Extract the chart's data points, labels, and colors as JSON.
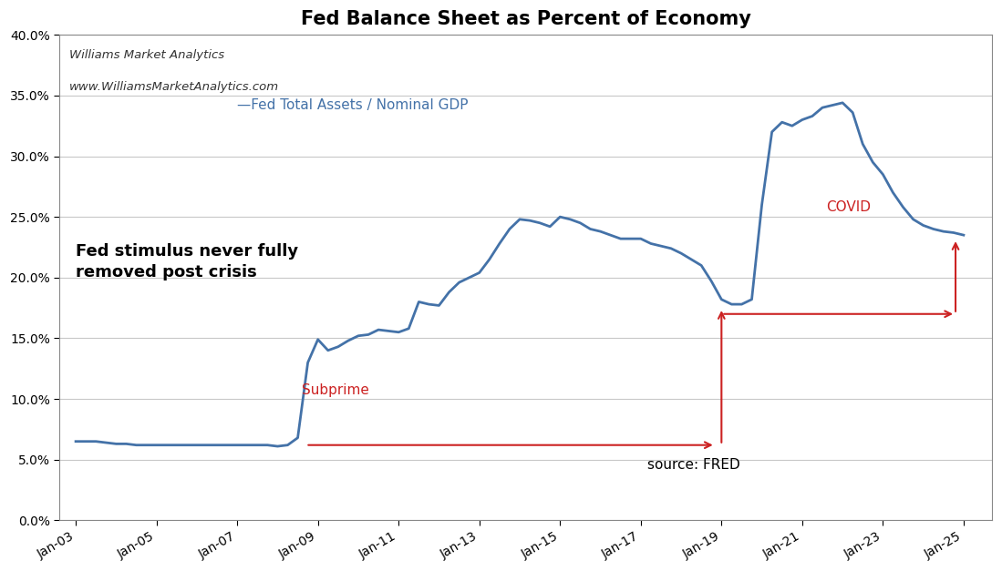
{
  "title": "Fed Balance Sheet as Percent of Economy",
  "subtitle1": "Williams Market Analytics",
  "subtitle2": "www.WilliamsMarketAnalytics.com",
  "source_text": "source: FRED",
  "legend_label": "—Fed Total Assets / Nominal GDP",
  "annotation_bold": "Fed stimulus never fully\nremoved post crisis",
  "annotation_subprime": "Subprime",
  "annotation_covid": "COVID",
  "line_color": "#4472A8",
  "arrow_color": "#CC2222",
  "background_color": "#FFFFFF",
  "grid_color": "#C8C8C8",
  "x_ticks": [
    "Jan-03",
    "Jan-05",
    "Jan-07",
    "Jan-09",
    "Jan-11",
    "Jan-13",
    "Jan-15",
    "Jan-17",
    "Jan-19",
    "Jan-21",
    "Jan-23",
    "Jan-25"
  ],
  "x_tick_years": [
    2003,
    2005,
    2007,
    2009,
    2011,
    2013,
    2015,
    2017,
    2019,
    2021,
    2023,
    2025
  ],
  "xlim": [
    2002.6,
    2025.7
  ],
  "ylim": [
    0.0,
    0.4
  ],
  "yticks": [
    0.0,
    0.05,
    0.1,
    0.15,
    0.2,
    0.25,
    0.3,
    0.35,
    0.4
  ],
  "data": {
    "years": [
      2003.0,
      2003.25,
      2003.5,
      2003.75,
      2004.0,
      2004.25,
      2004.5,
      2004.75,
      2005.0,
      2005.25,
      2005.5,
      2005.75,
      2006.0,
      2006.25,
      2006.5,
      2006.75,
      2007.0,
      2007.25,
      2007.5,
      2007.75,
      2008.0,
      2008.25,
      2008.5,
      2008.75,
      2009.0,
      2009.25,
      2009.5,
      2009.75,
      2010.0,
      2010.25,
      2010.5,
      2010.75,
      2011.0,
      2011.25,
      2011.5,
      2011.75,
      2012.0,
      2012.25,
      2012.5,
      2012.75,
      2013.0,
      2013.25,
      2013.5,
      2013.75,
      2014.0,
      2014.25,
      2014.5,
      2014.75,
      2015.0,
      2015.25,
      2015.5,
      2015.75,
      2016.0,
      2016.25,
      2016.5,
      2016.75,
      2017.0,
      2017.25,
      2017.5,
      2017.75,
      2018.0,
      2018.25,
      2018.5,
      2018.75,
      2019.0,
      2019.25,
      2019.5,
      2019.75,
      2020.0,
      2020.25,
      2020.5,
      2020.75,
      2021.0,
      2021.25,
      2021.5,
      2021.75,
      2022.0,
      2022.25,
      2022.5,
      2022.75,
      2023.0,
      2023.25,
      2023.5,
      2023.75,
      2024.0,
      2024.25,
      2024.5,
      2024.75,
      2025.0
    ],
    "values": [
      0.065,
      0.065,
      0.065,
      0.064,
      0.063,
      0.063,
      0.062,
      0.062,
      0.062,
      0.062,
      0.062,
      0.062,
      0.062,
      0.062,
      0.062,
      0.062,
      0.062,
      0.062,
      0.062,
      0.062,
      0.061,
      0.062,
      0.068,
      0.13,
      0.149,
      0.14,
      0.143,
      0.148,
      0.152,
      0.153,
      0.157,
      0.156,
      0.155,
      0.158,
      0.18,
      0.178,
      0.177,
      0.188,
      0.196,
      0.2,
      0.204,
      0.215,
      0.228,
      0.24,
      0.248,
      0.247,
      0.245,
      0.242,
      0.25,
      0.248,
      0.245,
      0.24,
      0.238,
      0.235,
      0.232,
      0.232,
      0.232,
      0.228,
      0.226,
      0.224,
      0.22,
      0.215,
      0.21,
      0.197,
      0.182,
      0.178,
      0.178,
      0.182,
      0.26,
      0.32,
      0.328,
      0.325,
      0.33,
      0.333,
      0.34,
      0.342,
      0.344,
      0.336,
      0.31,
      0.295,
      0.285,
      0.27,
      0.258,
      0.248,
      0.243,
      0.24,
      0.238,
      0.237,
      0.235
    ]
  }
}
